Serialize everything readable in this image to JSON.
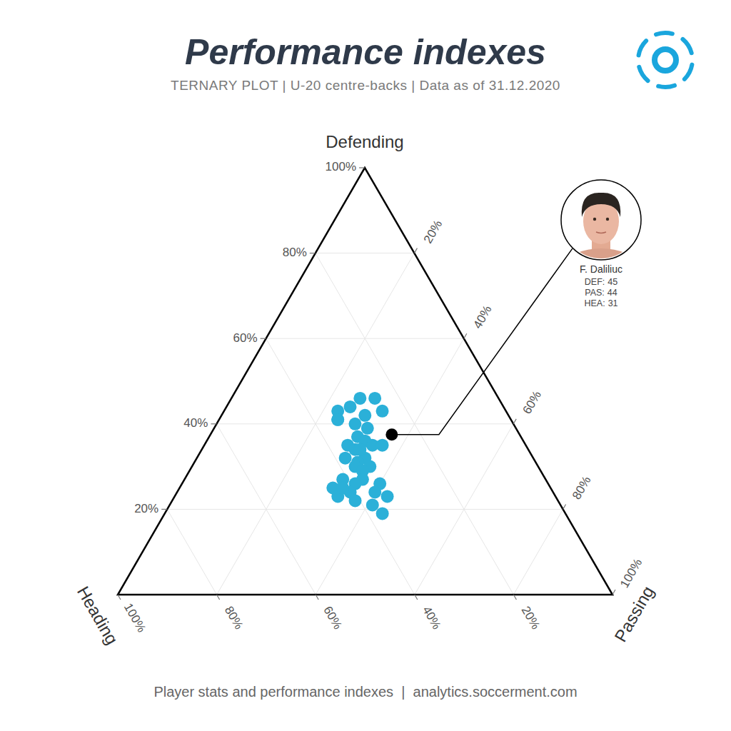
{
  "chart_data": {
    "type": "ternary",
    "title": "Performance indexes",
    "subtitle": "TERNARY PLOT | U-20 centre-backs | Data as of 31.12.2020",
    "footer": "Player stats and performance indexes  |  analytics.soccerment.com",
    "grid": true,
    "color": "#2bb0d8",
    "axes": {
      "defending": {
        "label": "Defending",
        "lim": [
          0,
          100
        ],
        "ticks": [
          {
            "value": 20,
            "label": "20%"
          },
          {
            "value": 40,
            "label": "40%"
          },
          {
            "value": 60,
            "label": "60%"
          },
          {
            "value": 80,
            "label": "80%"
          },
          {
            "value": 100,
            "label": "100%"
          }
        ]
      },
      "passing": {
        "label": "Passing",
        "lim": [
          0,
          100
        ],
        "ticks": [
          {
            "value": 20,
            "label": "20%"
          },
          {
            "value": 40,
            "label": "40%"
          },
          {
            "value": 60,
            "label": "60%"
          },
          {
            "value": 80,
            "label": "80%"
          },
          {
            "value": 100,
            "label": "100%"
          }
        ]
      },
      "heading": {
        "label": "Heading",
        "lim": [
          0,
          100
        ],
        "ticks": [
          {
            "value": 20,
            "label": "20%"
          },
          {
            "value": 40,
            "label": "40%"
          },
          {
            "value": 60,
            "label": "60%"
          },
          {
            "value": 80,
            "label": "80%"
          },
          {
            "value": 100,
            "label": "100%"
          }
        ]
      }
    },
    "points": {
      "defending": [
        46,
        44,
        43,
        46,
        43,
        42,
        41,
        40,
        39,
        37,
        36,
        35,
        35,
        35,
        34,
        32,
        32,
        31,
        30,
        30,
        29,
        27,
        27,
        26,
        26,
        25,
        24,
        23,
        23,
        22,
        21,
        19,
        34,
        25,
        24,
        41
      ],
      "passing": [
        26,
        25,
        23,
        29,
        32,
        29,
        24,
        28,
        31,
        30,
        32,
        29,
        34,
        36,
        31,
        30,
        34,
        33,
        36,
        33,
        35,
        32,
        36,
        40,
        35,
        31,
        35,
        33,
        43,
        37,
        41,
        44,
        32,
        33,
        40,
        24
      ],
      "heading": [
        28,
        31,
        34,
        25,
        25,
        29,
        35,
        32,
        30,
        33,
        32,
        36,
        31,
        29,
        35,
        38,
        34,
        36,
        34,
        37,
        36,
        41,
        37,
        34,
        39,
        44,
        41,
        44,
        34,
        41,
        38,
        37,
        34,
        42,
        36,
        35
      ]
    },
    "highlight": {
      "name": "F. Daliliuc",
      "color": "#000000",
      "labels": {
        "defending": "DEF:",
        "passing": "PAS:",
        "heading": "HEA:"
      },
      "values": {
        "defending": 45,
        "passing": 44,
        "heading": 31
      }
    }
  }
}
